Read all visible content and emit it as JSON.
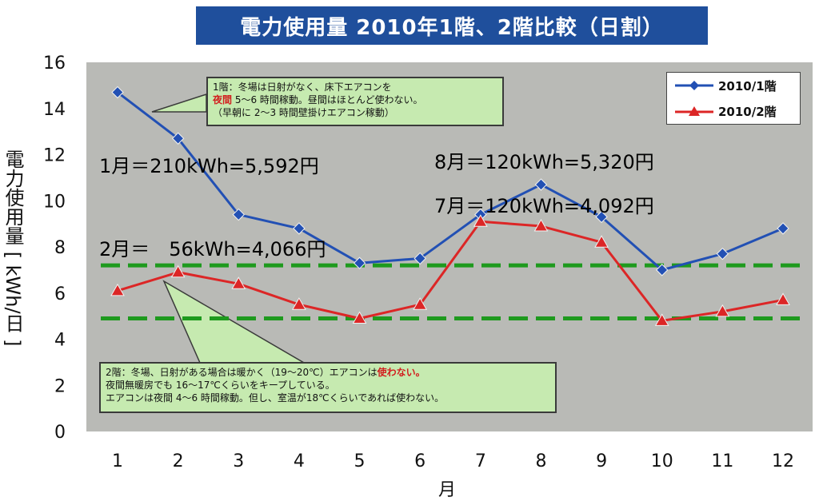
{
  "chart_data": {
    "type": "line",
    "title": "電力使用量 2010年1階、2階比較（日割）",
    "xlabel": "月",
    "ylabel": "電力使用量 [ kWh/日 ]",
    "categories": [
      "1",
      "2",
      "3",
      "4",
      "5",
      "6",
      "7",
      "8",
      "9",
      "10",
      "11",
      "12"
    ],
    "ylim": [
      0,
      16
    ],
    "yticks": [
      "0",
      "2",
      "4",
      "6",
      "8",
      "10",
      "12",
      "14",
      "16"
    ],
    "grid": false,
    "legend_position": "top-right",
    "series": [
      {
        "name": "2010/1階",
        "color": "#2250b4",
        "marker": "diamond",
        "values": [
          14.7,
          12.7,
          9.4,
          8.8,
          7.3,
          7.5,
          9.4,
          10.7,
          9.3,
          7.0,
          7.7,
          8.8
        ]
      },
      {
        "name": "2010/2階",
        "color": "#dc2626",
        "marker": "triangle",
        "values": [
          6.1,
          6.9,
          6.4,
          5.5,
          4.9,
          5.5,
          9.1,
          8.9,
          8.2,
          4.8,
          5.2,
          5.7
        ]
      }
    ],
    "reference_lines": [
      7.2,
      4.9
    ],
    "reference_line_color": "#1e9a1e"
  },
  "annotations": {
    "jan": "1月＝210kWh=5,592円",
    "aug": "8月＝120kWh=5,320円",
    "jul": "7月＝120kWh=4,092円",
    "feb": "2月＝　56kWh=4,066円"
  },
  "notes": {
    "floor1": {
      "line1": "1階：冬場は日射がなく、床下エアコンを",
      "line2_red": "夜間",
      "line2_rest": " 5～6 時間稼動。昼間はほとんど使わない。",
      "line3": "（早朝に 2～3 時間壁掛けエアコン稼動）"
    },
    "floor2": {
      "line1_pre": "2階：冬場、日射がある場合は暖かく（19～20℃）エアコンは",
      "line1_red": "使わない。",
      "line2": "夜間無暖房でも 16～17℃くらいをキープしている。",
      "line3": "エアコンは夜間 4～6 時間稼動。但し、室温が18℃くらいであれば使わない。"
    }
  },
  "colors": {
    "plot_background": "#b9bab6",
    "title_background": "#1f4f9c",
    "note_background": "#c6eab0"
  }
}
